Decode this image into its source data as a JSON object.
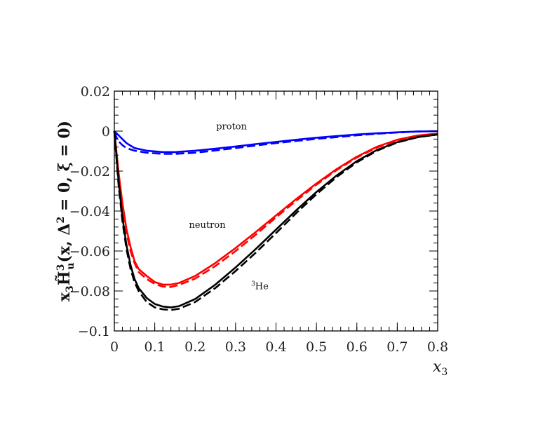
{
  "chart_data": {
    "type": "line",
    "xlabel": "x",
    "xlabel_sub": "3",
    "ylabel": {
      "x3": "x",
      "x3_sub": "3",
      "H": "H̃",
      "H_sup": "3",
      "H_sub": "u",
      "args": "(x, Δ",
      "args_sup": "2",
      "args_tail": " = 0, ξ = 0)"
    },
    "xlim": [
      0,
      0.8
    ],
    "ylim": [
      -0.1,
      0.02
    ],
    "grid": false,
    "x_ticks": [
      0,
      0.1,
      0.2,
      0.3,
      0.4,
      0.5,
      0.6,
      0.7,
      0.8
    ],
    "x_tick_labels": [
      "0",
      "0.1",
      "0.2",
      "0.3",
      "0.4",
      "0.5",
      "0.6",
      "0.7",
      "0.8"
    ],
    "y_ticks": [
      0.02,
      0,
      -0.02,
      -0.04,
      -0.06,
      -0.08,
      -0.1
    ],
    "y_tick_labels": [
      "0.02",
      "0",
      "−0.02",
      "−0.04",
      "−0.06",
      "−0.08",
      "−0.1"
    ],
    "annotations": [
      {
        "text": "proton",
        "x": 0.29,
        "y": 0.0008
      },
      {
        "text": "neutron",
        "x": 0.23,
        "y": -0.0485
      },
      {
        "sup": "3",
        "text": "He",
        "x": 0.36,
        "y": -0.0792
      }
    ],
    "series": [
      {
        "color": "#0000ff",
        "dash": false,
        "x": [
          0,
          0.005,
          0.01,
          0.02,
          0.03,
          0.05,
          0.08,
          0.12,
          0.15,
          0.2,
          0.25,
          0.3,
          0.35,
          0.4,
          0.45,
          0.5,
          0.55,
          0.6,
          0.65,
          0.7,
          0.75,
          0.8
        ],
        "y": [
          0,
          -0.001,
          -0.002,
          -0.004,
          -0.006,
          -0.0085,
          -0.0098,
          -0.0105,
          -0.0105,
          -0.0098,
          -0.0088,
          -0.0077,
          -0.0065,
          -0.0054,
          -0.0043,
          -0.0033,
          -0.0025,
          -0.0017,
          -0.0011,
          -0.0006,
          -0.0002,
          0
        ]
      },
      {
        "color": "#0000ff",
        "dash": true,
        "x": [
          0,
          0.005,
          0.01,
          0.02,
          0.03,
          0.05,
          0.08,
          0.12,
          0.15,
          0.2,
          0.25,
          0.3,
          0.35,
          0.4,
          0.45,
          0.5,
          0.55,
          0.6,
          0.65,
          0.7,
          0.75,
          0.8
        ],
        "y": [
          0,
          -0.003,
          -0.005,
          -0.007,
          -0.0085,
          -0.0098,
          -0.0108,
          -0.0114,
          -0.0114,
          -0.0108,
          -0.0097,
          -0.0085,
          -0.0072,
          -0.006,
          -0.0049,
          -0.0039,
          -0.003,
          -0.0021,
          -0.0013,
          -0.0007,
          -0.0002,
          0
        ]
      },
      {
        "color": "#ff0000",
        "dash": false,
        "x": [
          0,
          0.005,
          0.01,
          0.02,
          0.03,
          0.04,
          0.05,
          0.06,
          0.08,
          0.1,
          0.12,
          0.14,
          0.16,
          0.2,
          0.25,
          0.3,
          0.35,
          0.4,
          0.45,
          0.5,
          0.55,
          0.6,
          0.65,
          0.7,
          0.75,
          0.8
        ],
        "y": [
          0,
          -0.01,
          -0.02,
          -0.036,
          -0.049,
          -0.058,
          -0.065,
          -0.069,
          -0.0725,
          -0.0755,
          -0.0768,
          -0.0768,
          -0.076,
          -0.0725,
          -0.066,
          -0.0585,
          -0.0505,
          -0.0422,
          -0.034,
          -0.0262,
          -0.019,
          -0.0128,
          -0.0078,
          -0.0043,
          -0.0022,
          -0.0012
        ]
      },
      {
        "color": "#ff0000",
        "dash": true,
        "x": [
          0,
          0.005,
          0.01,
          0.02,
          0.03,
          0.04,
          0.05,
          0.06,
          0.08,
          0.1,
          0.12,
          0.14,
          0.16,
          0.2,
          0.25,
          0.3,
          0.35,
          0.4,
          0.45,
          0.5,
          0.55,
          0.6,
          0.65,
          0.7,
          0.75,
          0.8
        ],
        "y": [
          0,
          -0.011,
          -0.022,
          -0.039,
          -0.051,
          -0.06,
          -0.066,
          -0.0705,
          -0.074,
          -0.0765,
          -0.0778,
          -0.078,
          -0.077,
          -0.0738,
          -0.0675,
          -0.06,
          -0.0518,
          -0.0432,
          -0.0348,
          -0.0268,
          -0.0195,
          -0.0132,
          -0.0082,
          -0.0046,
          -0.0024,
          -0.0013
        ]
      },
      {
        "color": "#000000",
        "dash": false,
        "x": [
          0,
          0.005,
          0.01,
          0.02,
          0.03,
          0.04,
          0.05,
          0.06,
          0.08,
          0.1,
          0.12,
          0.14,
          0.16,
          0.2,
          0.25,
          0.3,
          0.35,
          0.4,
          0.45,
          0.5,
          0.55,
          0.6,
          0.65,
          0.7,
          0.75,
          0.8
        ],
        "y": [
          0,
          -0.012,
          -0.024,
          -0.043,
          -0.057,
          -0.067,
          -0.074,
          -0.0785,
          -0.0835,
          -0.0865,
          -0.0878,
          -0.0882,
          -0.0876,
          -0.084,
          -0.0768,
          -0.0682,
          -0.059,
          -0.0493,
          -0.0396,
          -0.0305,
          -0.0222,
          -0.015,
          -0.0094,
          -0.0055,
          -0.003,
          -0.0017
        ]
      },
      {
        "color": "#000000",
        "dash": true,
        "x": [
          0,
          0.005,
          0.01,
          0.02,
          0.03,
          0.04,
          0.05,
          0.06,
          0.08,
          0.1,
          0.12,
          0.14,
          0.16,
          0.2,
          0.25,
          0.3,
          0.35,
          0.4,
          0.45,
          0.5,
          0.55,
          0.6,
          0.65,
          0.7,
          0.75,
          0.8
        ],
        "y": [
          0,
          -0.013,
          -0.026,
          -0.045,
          -0.059,
          -0.069,
          -0.0755,
          -0.08,
          -0.0855,
          -0.0882,
          -0.0892,
          -0.0895,
          -0.0889,
          -0.0855,
          -0.0785,
          -0.07,
          -0.0608,
          -0.051,
          -0.041,
          -0.0316,
          -0.023,
          -0.0156,
          -0.0098,
          -0.0057,
          -0.0031,
          -0.0017
        ]
      }
    ]
  }
}
